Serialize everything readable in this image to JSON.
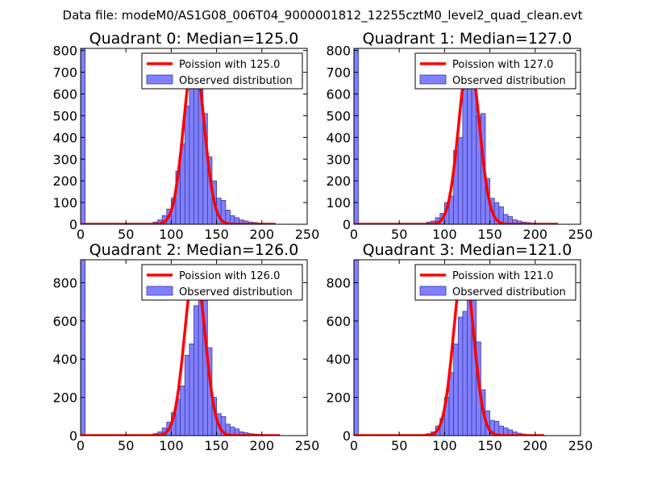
{
  "figure": {
    "suptitle": "Data file: modeM0/AS1G08_006T04_9000001812_12255cztM0_level2_quad_clean.evt"
  },
  "colors": {
    "bar_fill": "#8080ff",
    "bar_edge": "#3a3aa0",
    "poisson_line": "#ff0000",
    "axis": "#000000",
    "background": "#ffffff"
  },
  "chart_data": [
    {
      "type": "bar",
      "title": "Quadrant 0: Median=125.0",
      "xlim": [
        0,
        250
      ],
      "ylim": [
        0,
        810
      ],
      "xticks": [
        0,
        50,
        100,
        150,
        200,
        250
      ],
      "yticks": [
        0,
        100,
        200,
        300,
        400,
        500,
        600,
        700,
        800
      ],
      "legend": {
        "location": "top-right",
        "line_label": "Poission with 125.0",
        "bar_label": "Observed distribution"
      },
      "poisson_mean": 125.0,
      "poisson_peak": 775,
      "bin_width": 5,
      "bins_left": [
        0,
        80,
        85,
        90,
        95,
        100,
        105,
        110,
        115,
        120,
        125,
        130,
        135,
        140,
        145,
        150,
        155,
        160,
        165,
        170,
        175,
        180,
        185,
        190,
        195,
        200,
        205,
        210
      ],
      "counts": [
        810,
        10,
        20,
        40,
        70,
        120,
        245,
        370,
        545,
        705,
        720,
        620,
        510,
        310,
        200,
        120,
        110,
        65,
        40,
        30,
        20,
        15,
        10,
        8,
        5,
        4,
        3,
        2
      ]
    },
    {
      "type": "bar",
      "title": "Quadrant 1: Median=127.0",
      "xlim": [
        0,
        250
      ],
      "ylim": [
        0,
        810
      ],
      "xticks": [
        0,
        50,
        100,
        150,
        200,
        250
      ],
      "yticks": [
        0,
        100,
        200,
        300,
        400,
        500,
        600,
        700,
        800
      ],
      "legend": {
        "location": "top-right",
        "line_label": "Poission with 127.0",
        "bar_label": "Observed distribution"
      },
      "poisson_mean": 127.0,
      "poisson_peak": 770,
      "bin_width": 5,
      "bins_left": [
        0,
        80,
        85,
        90,
        95,
        100,
        105,
        110,
        115,
        120,
        125,
        130,
        135,
        140,
        145,
        150,
        155,
        160,
        165,
        170,
        175,
        180,
        185,
        190,
        195,
        200,
        205,
        210,
        215,
        220
      ],
      "counts": [
        810,
        10,
        15,
        30,
        50,
        100,
        130,
        340,
        400,
        660,
        740,
        730,
        500,
        510,
        210,
        120,
        100,
        80,
        45,
        35,
        20,
        15,
        10,
        8,
        5,
        4,
        3,
        2,
        2,
        1
      ]
    },
    {
      "type": "bar",
      "title": "Quadrant 2: Median=126.0",
      "xlim": [
        0,
        250
      ],
      "ylim": [
        0,
        920
      ],
      "xticks": [
        0,
        50,
        100,
        150,
        200,
        250
      ],
      "yticks": [
        0,
        200,
        400,
        600,
        800
      ],
      "legend": {
        "location": "top-right",
        "line_label": "Poission with 126.0",
        "bar_label": "Observed distribution"
      },
      "poisson_mean": 126.0,
      "poisson_peak": 880,
      "bin_width": 5,
      "bins_left": [
        0,
        80,
        85,
        90,
        95,
        100,
        105,
        110,
        115,
        120,
        125,
        130,
        135,
        140,
        145,
        150,
        155,
        160,
        165,
        170,
        175,
        180,
        185,
        190,
        195,
        200,
        205,
        210,
        215
      ],
      "counts": [
        920,
        10,
        20,
        40,
        70,
        120,
        190,
        260,
        420,
        480,
        680,
        810,
        720,
        460,
        200,
        115,
        100,
        60,
        45,
        35,
        20,
        15,
        10,
        8,
        6,
        4,
        3,
        2,
        1
      ]
    },
    {
      "type": "bar",
      "title": "Quadrant 3: Median=121.0",
      "xlim": [
        0,
        250
      ],
      "ylim": [
        0,
        920
      ],
      "xticks": [
        0,
        50,
        100,
        150,
        200,
        250
      ],
      "yticks": [
        0,
        200,
        400,
        600,
        800
      ],
      "legend": {
        "location": "top-right",
        "line_label": "Poission with 121.0",
        "bar_label": "Observed distribution"
      },
      "poisson_mean": 121.0,
      "poisson_peak": 890,
      "bin_width": 5,
      "bins_left": [
        0,
        80,
        85,
        90,
        95,
        100,
        105,
        110,
        115,
        120,
        125,
        130,
        135,
        140,
        145,
        150,
        155,
        160,
        165,
        170,
        175,
        180,
        185,
        190,
        195,
        200,
        205
      ],
      "counts": [
        920,
        10,
        20,
        50,
        90,
        200,
        330,
        480,
        620,
        650,
        850,
        770,
        490,
        240,
        130,
        80,
        75,
        50,
        40,
        30,
        20,
        12,
        8,
        5,
        4,
        3,
        2
      ]
    }
  ]
}
